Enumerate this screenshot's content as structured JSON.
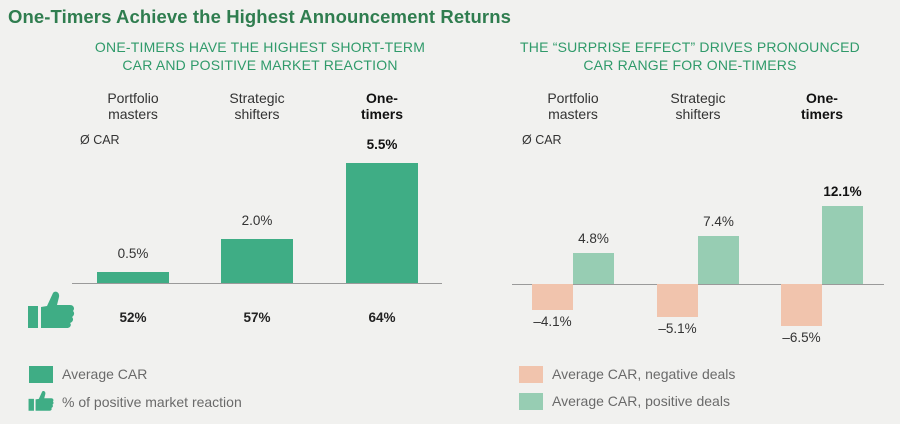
{
  "title": "One-Timers Achieve the Highest Announcement Returns",
  "colors": {
    "green": "#3fad85",
    "light_green": "#97cdb3",
    "salmon": "#f1c4ad",
    "title_green": "#2f7d4f"
  },
  "chart_data": [
    {
      "type": "bar",
      "title": "ONE-TIMERS HAVE THE HIGHEST SHORT-TERM CAR AND POSITIVE MARKET REACTION",
      "title_lines": [
        "ONE-TIMERS HAVE THE HIGHEST SHORT-TERM",
        "CAR AND POSITIVE MARKET REACTION"
      ],
      "categories": [
        {
          "lines": [
            "Portfolio",
            "masters"
          ],
          "bold": false
        },
        {
          "lines": [
            "Strategic",
            "shifters"
          ],
          "bold": false
        },
        {
          "lines": [
            "One-",
            "timers"
          ],
          "bold": true
        }
      ],
      "ylabel": "Ø CAR",
      "ylim": [
        0,
        5.5
      ],
      "series": [
        {
          "name": "Average CAR",
          "values": [
            0.5,
            2.0,
            5.5
          ],
          "labels": [
            "0.5%",
            "2.0%",
            "5.5%"
          ]
        }
      ],
      "positive_reaction": {
        "name": "% of positive market reaction",
        "values": [
          52,
          57,
          64
        ],
        "labels": [
          "52%",
          "57%",
          "64%"
        ]
      },
      "legend": [
        "Average CAR",
        "% of positive market reaction"
      ]
    },
    {
      "type": "bar",
      "title": "THE “SURPRISE EFFECT” DRIVES PRONOUNCED CAR RANGE FOR ONE-TIMERS",
      "title_lines": [
        "THE “SURPRISE EFFECT” DRIVES PRONOUNCED",
        "CAR RANGE FOR ONE-TIMERS"
      ],
      "categories": [
        {
          "lines": [
            "Portfolio",
            "masters"
          ],
          "bold": false
        },
        {
          "lines": [
            "Strategic",
            "shifters"
          ],
          "bold": false
        },
        {
          "lines": [
            "One-",
            "timers"
          ],
          "bold": true
        }
      ],
      "ylabel": "Ø CAR",
      "ylim": [
        -6.5,
        12.1
      ],
      "series": [
        {
          "name": "Average CAR, negative deals",
          "values": [
            -4.1,
            -5.1,
            -6.5
          ],
          "labels": [
            "–4.1%",
            "–5.1%",
            "–6.5%"
          ]
        },
        {
          "name": "Average CAR, positive deals",
          "values": [
            4.8,
            7.4,
            12.1
          ],
          "labels": [
            "4.8%",
            "7.4%",
            "12.1%"
          ]
        }
      ],
      "legend": [
        "Average CAR, negative deals",
        "Average CAR, positive deals"
      ]
    }
  ]
}
